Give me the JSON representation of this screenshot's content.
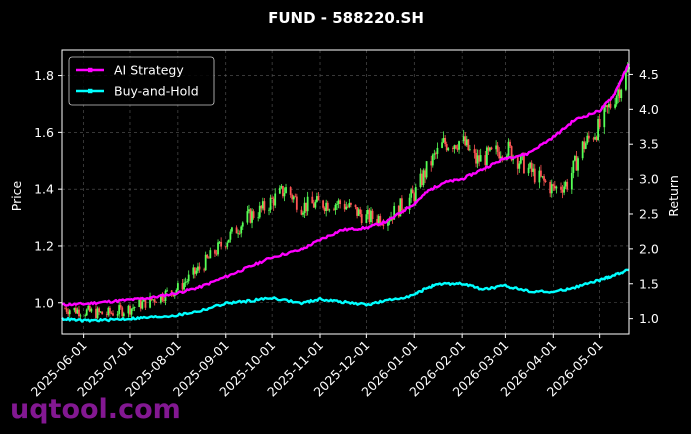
{
  "chart_data": {
    "type": "line",
    "title": "FUND - 588220.SH",
    "xlabel": "",
    "ylabel_left": "Price",
    "ylabel_right": "Return",
    "ylim_left": [
      0.89,
      1.89
    ],
    "ylim_right": [
      0.78,
      4.85
    ],
    "xlim": [
      "2025-05-18",
      "2026-05-20"
    ],
    "yticks_left": [
      1.0,
      1.2,
      1.4,
      1.6,
      1.8
    ],
    "yticks_left_labels": [
      "1.0",
      "1.2",
      "1.4",
      "1.6",
      "1.8"
    ],
    "yticks_right": [
      1.0,
      1.5,
      2.0,
      2.5,
      3.0,
      3.5,
      4.0,
      4.5
    ],
    "yticks_right_labels": [
      "1.0",
      "1.5",
      "2.0",
      "2.5",
      "3.0",
      "3.5",
      "4.0",
      "4.5"
    ],
    "xticks": [
      "2025-06-01",
      "2025-07-01",
      "2025-08-01",
      "2025-09-01",
      "2025-10-01",
      "2025-11-01",
      "2025-12-01",
      "2026-01-01",
      "2026-02-01",
      "2026-03-01",
      "2026-04-01",
      "2026-05-01"
    ],
    "grid": true,
    "legend_position": "top-left",
    "candlestick": {
      "name": "Price",
      "up_color": "#55ff55",
      "down_color": "#ff5555",
      "close_points": [
        [
          "2025-05-20",
          0.98
        ],
        [
          "2025-06-01",
          0.97
        ],
        [
          "2025-06-15",
          0.96
        ],
        [
          "2025-07-01",
          0.98
        ],
        [
          "2025-07-15",
          1.01
        ],
        [
          "2025-08-01",
          1.05
        ],
        [
          "2025-08-15",
          1.12
        ],
        [
          "2025-09-01",
          1.22
        ],
        [
          "2025-09-15",
          1.3
        ],
        [
          "2025-09-25",
          1.33
        ],
        [
          "2025-10-01",
          1.36
        ],
        [
          "2025-10-10",
          1.4
        ],
        [
          "2025-10-20",
          1.34
        ],
        [
          "2025-11-01",
          1.35
        ],
        [
          "2025-11-15",
          1.35
        ],
        [
          "2025-12-01",
          1.3
        ],
        [
          "2025-12-15",
          1.3
        ],
        [
          "2026-01-01",
          1.38
        ],
        [
          "2026-01-10",
          1.48
        ],
        [
          "2026-01-20",
          1.56
        ],
        [
          "2026-02-01",
          1.57
        ],
        [
          "2026-02-10",
          1.5
        ],
        [
          "2026-02-20",
          1.52
        ],
        [
          "2026-03-01",
          1.55
        ],
        [
          "2026-03-10",
          1.5
        ],
        [
          "2026-03-20",
          1.45
        ],
        [
          "2026-04-01",
          1.4
        ],
        [
          "2026-04-10",
          1.42
        ],
        [
          "2026-04-20",
          1.55
        ],
        [
          "2026-05-01",
          1.62
        ],
        [
          "2026-05-10",
          1.72
        ],
        [
          "2026-05-20",
          1.82
        ]
      ]
    },
    "series": [
      {
        "name": "AI Strategy",
        "color": "#ff00ff",
        "points": [
          [
            "2025-05-18",
            1.2
          ],
          [
            "2025-06-01",
            1.21
          ],
          [
            "2025-06-15",
            1.24
          ],
          [
            "2025-07-01",
            1.27
          ],
          [
            "2025-07-15",
            1.3
          ],
          [
            "2025-08-01",
            1.37
          ],
          [
            "2025-08-15",
            1.45
          ],
          [
            "2025-09-01",
            1.6
          ],
          [
            "2025-09-15",
            1.73
          ],
          [
            "2025-10-01",
            1.88
          ],
          [
            "2025-10-20",
            1.99
          ],
          [
            "2025-11-01",
            2.13
          ],
          [
            "2025-11-15",
            2.27
          ],
          [
            "2025-12-01",
            2.3
          ],
          [
            "2025-12-15",
            2.4
          ],
          [
            "2026-01-01",
            2.65
          ],
          [
            "2026-01-10",
            2.83
          ],
          [
            "2026-01-20",
            2.95
          ],
          [
            "2026-02-01",
            3.0
          ],
          [
            "2026-02-15",
            3.15
          ],
          [
            "2026-03-01",
            3.3
          ],
          [
            "2026-03-15",
            3.36
          ],
          [
            "2026-04-01",
            3.6
          ],
          [
            "2026-04-15",
            3.85
          ],
          [
            "2026-05-01",
            3.98
          ],
          [
            "2026-05-10",
            4.2
          ],
          [
            "2026-05-20",
            4.65
          ]
        ]
      },
      {
        "name": "Buy-and-Hold",
        "color": "#00ffff",
        "points": [
          [
            "2025-05-18",
            1.0
          ],
          [
            "2025-06-01",
            0.97
          ],
          [
            "2025-06-15",
            0.98
          ],
          [
            "2025-07-01",
            1.0
          ],
          [
            "2025-07-15",
            1.02
          ],
          [
            "2025-08-01",
            1.05
          ],
          [
            "2025-08-15",
            1.11
          ],
          [
            "2025-09-01",
            1.22
          ],
          [
            "2025-09-15",
            1.25
          ],
          [
            "2025-10-01",
            1.3
          ],
          [
            "2025-10-20",
            1.22
          ],
          [
            "2025-11-01",
            1.28
          ],
          [
            "2025-11-15",
            1.24
          ],
          [
            "2025-12-01",
            1.2
          ],
          [
            "2025-12-15",
            1.26
          ],
          [
            "2026-01-01",
            1.34
          ],
          [
            "2026-01-10",
            1.45
          ],
          [
            "2026-01-20",
            1.5
          ],
          [
            "2026-02-01",
            1.5
          ],
          [
            "2026-02-15",
            1.42
          ],
          [
            "2026-03-01",
            1.47
          ],
          [
            "2026-03-15",
            1.4
          ],
          [
            "2026-04-01",
            1.38
          ],
          [
            "2026-04-15",
            1.45
          ],
          [
            "2026-05-01",
            1.55
          ],
          [
            "2026-05-10",
            1.62
          ],
          [
            "2026-05-20",
            1.7
          ]
        ]
      }
    ]
  },
  "watermark": "uqtool.com"
}
